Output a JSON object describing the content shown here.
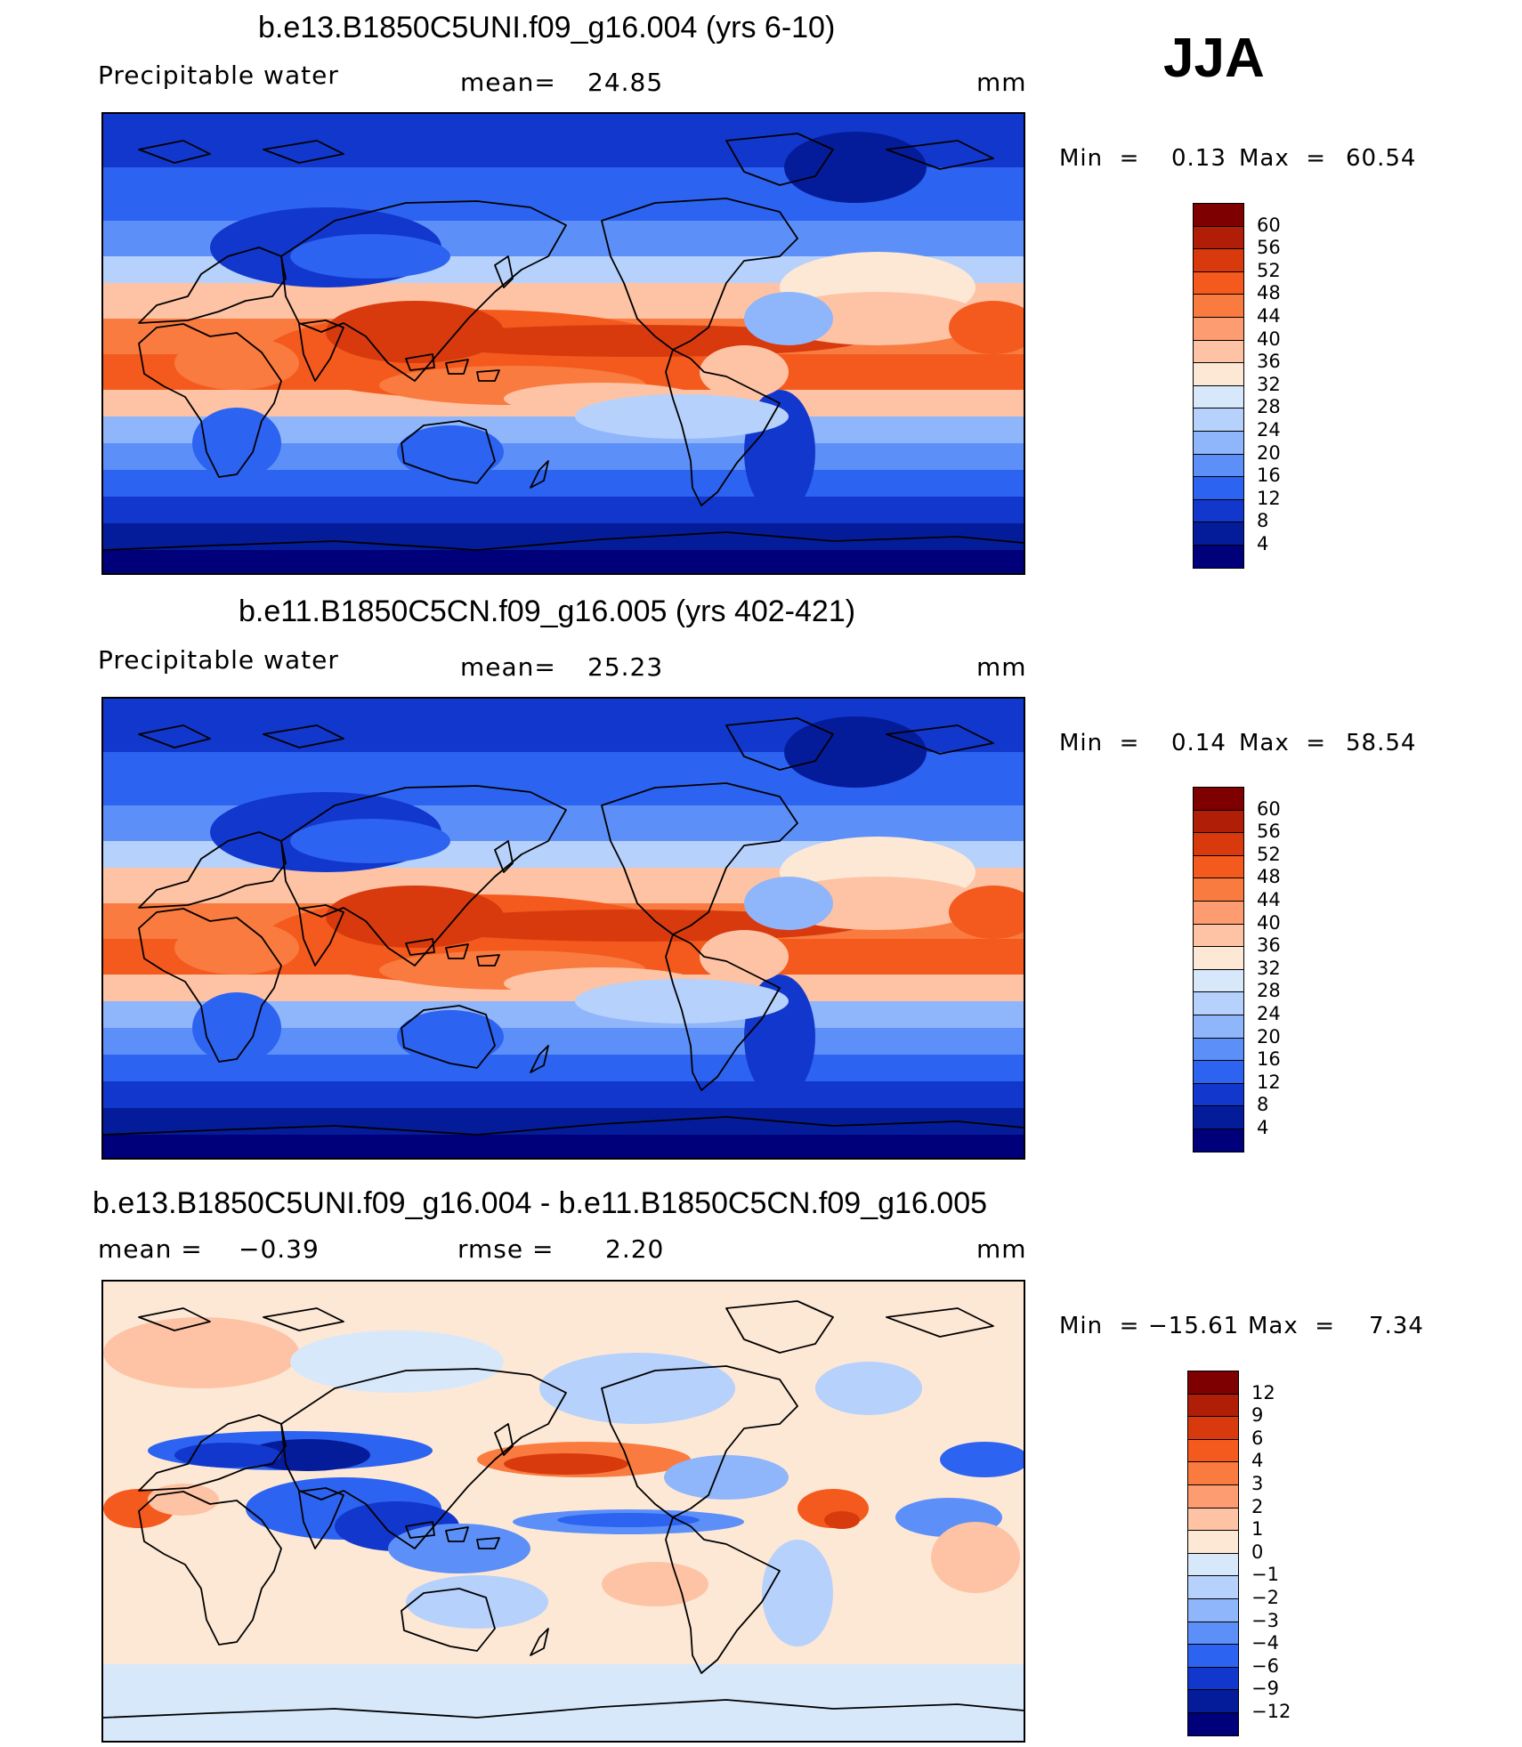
{
  "season": "JJA",
  "panels": [
    {
      "title": "b.e13.B1850C5UNI.f09_g16.004 (yrs 6-10)",
      "left_label": "Precipitable  water",
      "center_label": "mean=",
      "center_value": "24.85",
      "units": "mm",
      "min_label": "Min  =",
      "min_value": "0.13",
      "max_label": "Max  =",
      "max_value": "60.54",
      "colorbar": {
        "ticks": [
          "60",
          "56",
          "52",
          "48",
          "44",
          "40",
          "36",
          "32",
          "28",
          "24",
          "20",
          "16",
          "12",
          "8",
          "4"
        ],
        "colors": [
          "#7f0000",
          "#b01e08",
          "#d83a0e",
          "#f45a1d",
          "#fa7b3f",
          "#fc9c70",
          "#fdc3a4",
          "#fde8d6",
          "#d8e8fb",
          "#b6d1fb",
          "#8fb5fb",
          "#5c90f8",
          "#2c63f0",
          "#1237cc",
          "#051c9a",
          "#00007a"
        ]
      },
      "chart_data": {
        "type": "heatmap",
        "variable": "Precipitable water",
        "units": "mm",
        "mean": 24.85,
        "min": 0.13,
        "max": 60.54,
        "levels": [
          4,
          8,
          12,
          16,
          20,
          24,
          28,
          32,
          36,
          40,
          44,
          48,
          52,
          56,
          60
        ]
      }
    },
    {
      "title": "b.e11.B1850C5CN.f09_g16.005 (yrs 402-421)",
      "left_label": "Precipitable  water",
      "center_label": "mean=",
      "center_value": "25.23",
      "units": "mm",
      "min_label": "Min  =",
      "min_value": "0.14",
      "max_label": "Max  =",
      "max_value": "58.54",
      "colorbar": {
        "ticks": [
          "60",
          "56",
          "52",
          "48",
          "44",
          "40",
          "36",
          "32",
          "28",
          "24",
          "20",
          "16",
          "12",
          "8",
          "4"
        ],
        "colors": [
          "#7f0000",
          "#b01e08",
          "#d83a0e",
          "#f45a1d",
          "#fa7b3f",
          "#fc9c70",
          "#fdc3a4",
          "#fde8d6",
          "#d8e8fb",
          "#b6d1fb",
          "#8fb5fb",
          "#5c90f8",
          "#2c63f0",
          "#1237cc",
          "#051c9a",
          "#00007a"
        ]
      },
      "chart_data": {
        "type": "heatmap",
        "variable": "Precipitable water",
        "units": "mm",
        "mean": 25.23,
        "min": 0.14,
        "max": 58.54,
        "levels": [
          4,
          8,
          12,
          16,
          20,
          24,
          28,
          32,
          36,
          40,
          44,
          48,
          52,
          56,
          60
        ]
      }
    },
    {
      "title": "b.e13.B1850C5UNI.f09_g16.004 - b.e11.B1850C5CN.f09_g16.005",
      "left_label": "mean  =",
      "left_value": "−0.39",
      "center_label": "rmse  =",
      "center_value": "2.20",
      "units": "mm",
      "min_label": "Min  =",
      "min_value": "−15.61",
      "max_label": "Max  =",
      "max_value": "7.34",
      "colorbar": {
        "ticks": [
          "12",
          "9",
          "6",
          "4",
          "3",
          "2",
          "1",
          "0",
          "−1",
          "−2",
          "−3",
          "−4",
          "−6",
          "−9",
          "−12"
        ],
        "colors": [
          "#7f0000",
          "#b01e08",
          "#d83a0e",
          "#f45a1d",
          "#fa7b3f",
          "#fc9c70",
          "#fdc3a4",
          "#fde8d6",
          "#d8e8fb",
          "#b6d1fb",
          "#8fb5fb",
          "#5c90f8",
          "#2c63f0",
          "#1237cc",
          "#051c9a",
          "#00007a"
        ]
      },
      "chart_data": {
        "type": "heatmap",
        "variable": "Precipitable water difference",
        "units": "mm",
        "mean": -0.39,
        "rmse": 2.2,
        "min": -15.61,
        "max": 7.34,
        "levels": [
          -12,
          -9,
          -6,
          -4,
          -3,
          -2,
          -1,
          0,
          1,
          2,
          3,
          4,
          6,
          9,
          12
        ]
      }
    }
  ]
}
